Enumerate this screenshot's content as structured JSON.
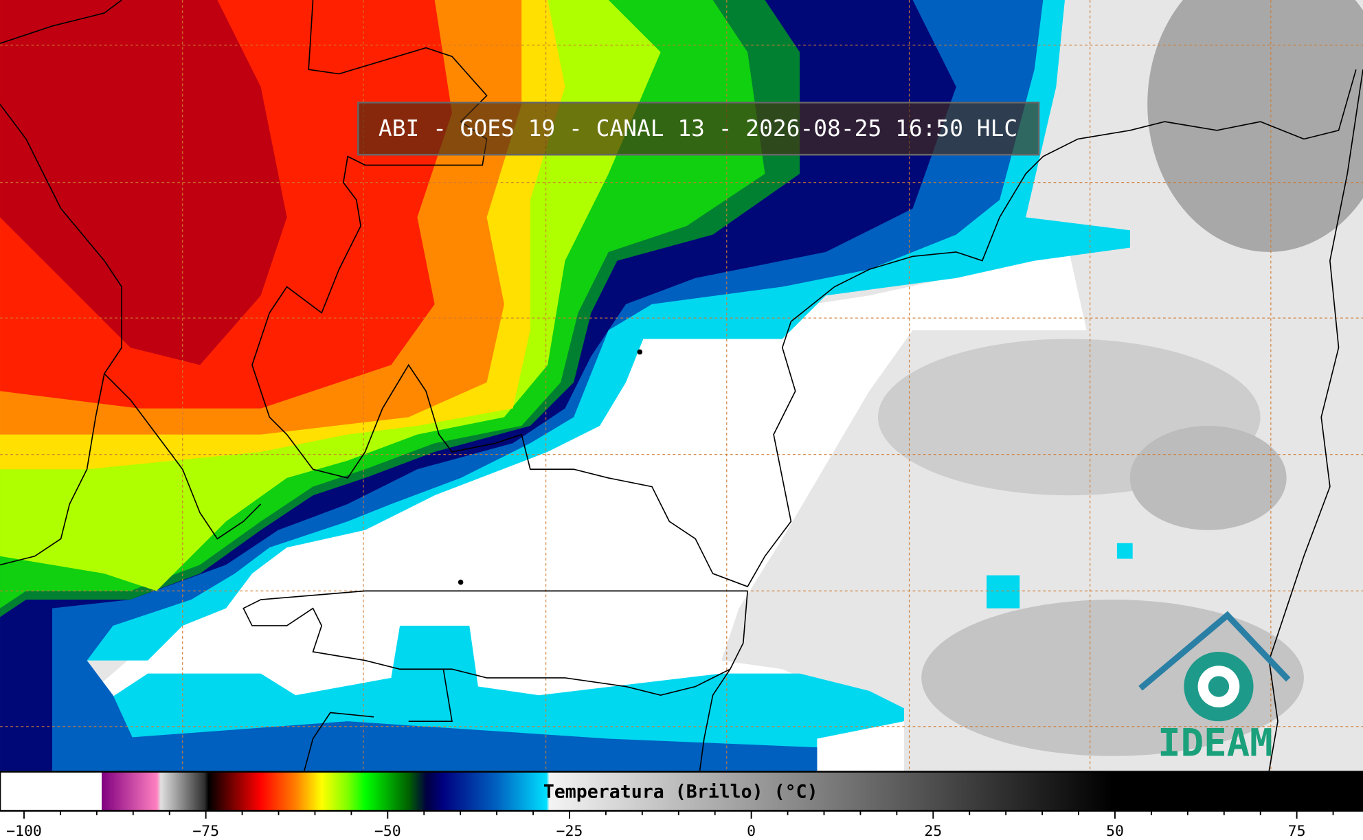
{
  "header": {
    "title": "ABI - GOES 19 - CANAL 13 - 2026-08-25 16:50 HLC"
  },
  "logo": {
    "text": "IDEAM"
  },
  "colorbar": {
    "label": "Temperatura (Brillo) (°C)",
    "xlim": [
      -103.3,
      84.1
    ],
    "xticks": [
      {
        "value": -100,
        "label": "−100"
      },
      {
        "value": -75,
        "label": "−75"
      },
      {
        "value": -50,
        "label": "−50"
      },
      {
        "value": -25,
        "label": "−25"
      },
      0,
      25,
      50,
      75
    ],
    "minor_ticks": [
      -95,
      -90,
      -85,
      -80,
      -70,
      -65,
      -60,
      -55,
      -45,
      -40,
      -35,
      -30,
      -20,
      -15,
      -10,
      -5,
      5,
      10,
      15,
      20,
      30,
      35,
      40,
      45,
      55,
      60,
      65,
      70,
      80
    ]
  }
}
